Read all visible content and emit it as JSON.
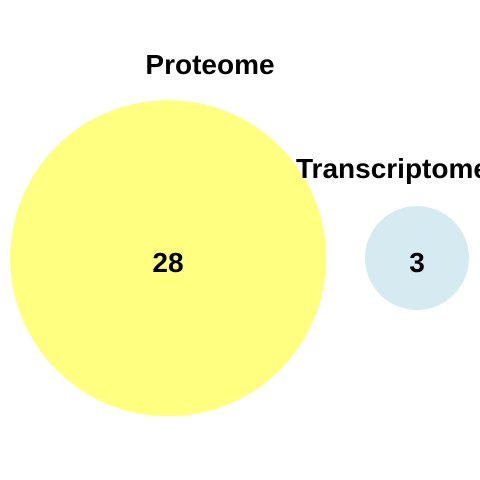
{
  "diagram": {
    "sets": [
      {
        "label": "Proteome",
        "count": "28",
        "color": "#ffff80"
      },
      {
        "label": "Transcriptome",
        "count": "3",
        "color": "#d6eaf1"
      }
    ]
  }
}
